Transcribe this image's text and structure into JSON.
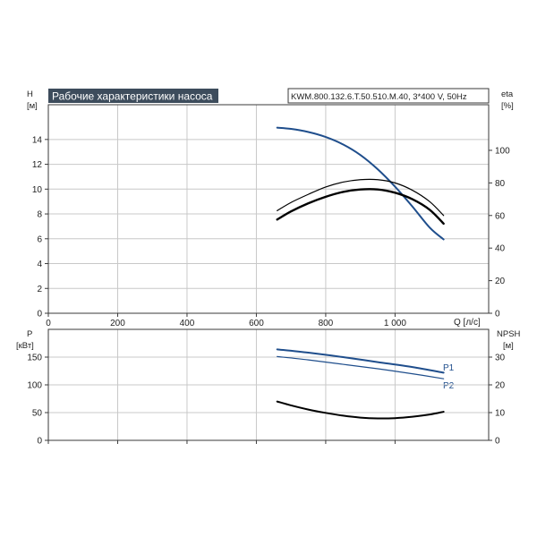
{
  "chart_data": [
    {
      "type": "line",
      "title": "Рабочие характеристики насоса",
      "model": "KWM.800.132.6.T.50.510.M.40, 3*400 V, 50Hz",
      "xlabel": "Q [л/с]",
      "ylabel_left": {
        "name": "H",
        "unit": "[м]"
      },
      "ylabel_right": {
        "name": "eta",
        "unit": "[%]"
      },
      "xlim": [
        0,
        1270
      ],
      "ylim_left": [
        0,
        16.8
      ],
      "ylim_right": [
        0,
        128
      ],
      "x_ticks": [
        "0",
        "200",
        "400",
        "600",
        "800",
        "1 000"
      ],
      "y_left_ticks": [
        "0",
        "2",
        "4",
        "6",
        "8",
        "10",
        "12",
        "14"
      ],
      "y_right_ticks": [
        "0",
        "20",
        "40",
        "60",
        "80",
        "100"
      ],
      "grid": true,
      "series": [
        {
          "axis": "left",
          "color": "#1f4e8c",
          "width": 2,
          "x": [
            660,
            700,
            750,
            800,
            850,
            900,
            950,
            1000,
            1050,
            1100,
            1140
          ],
          "y": [
            14.95,
            14.85,
            14.6,
            14.2,
            13.6,
            12.75,
            11.6,
            10.2,
            8.6,
            6.9,
            5.95
          ]
        },
        {
          "axis": "right",
          "color": "#000000",
          "width": 1.2,
          "x": [
            660,
            700,
            750,
            800,
            850,
            900,
            950,
            1000,
            1050,
            1100,
            1140
          ],
          "y": [
            63,
            68,
            73,
            77.5,
            80.5,
            82,
            82,
            80,
            75.5,
            68.5,
            60
          ]
        },
        {
          "axis": "right",
          "color": "#000000",
          "width": 2.4,
          "x": [
            660,
            700,
            750,
            800,
            850,
            900,
            950,
            1000,
            1050,
            1100,
            1140
          ],
          "y": [
            57.5,
            62.5,
            67.5,
            71.5,
            74.5,
            76,
            76,
            74,
            70,
            63.5,
            55
          ]
        }
      ]
    },
    {
      "type": "line",
      "xlabel": "",
      "ylabel_left": {
        "name": "P",
        "unit": "[кВт]"
      },
      "ylabel_right": {
        "name": "NPSH",
        "unit": "[м]"
      },
      "xlim": [
        0,
        1270
      ],
      "ylim_left": [
        0,
        200
      ],
      "ylim_right": [
        0,
        40
      ],
      "y_left_ticks": [
        "0",
        "50",
        "100",
        "150"
      ],
      "y_right_ticks": [
        "0",
        "10",
        "20",
        "30"
      ],
      "grid": true,
      "series": [
        {
          "name": "P1",
          "axis": "left",
          "color": "#1f4e8c",
          "width": 2,
          "x": [
            660,
            750,
            850,
            950,
            1050,
            1140
          ],
          "y": [
            164,
            158,
            150,
            141,
            132,
            122
          ]
        },
        {
          "name": "P2",
          "axis": "left",
          "color": "#1f4e8c",
          "width": 1.2,
          "x": [
            660,
            750,
            850,
            950,
            1050,
            1140
          ],
          "y": [
            151,
            145,
            137,
            129,
            120,
            111
          ]
        },
        {
          "axis": "right",
          "color": "#000000",
          "width": 2,
          "x": [
            660,
            700,
            750,
            800,
            850,
            900,
            950,
            1000,
            1050,
            1100,
            1140
          ],
          "y": [
            14,
            12.6,
            11.1,
            9.9,
            8.9,
            8.2,
            7.9,
            8.0,
            8.5,
            9.3,
            10.3
          ]
        }
      ]
    }
  ]
}
